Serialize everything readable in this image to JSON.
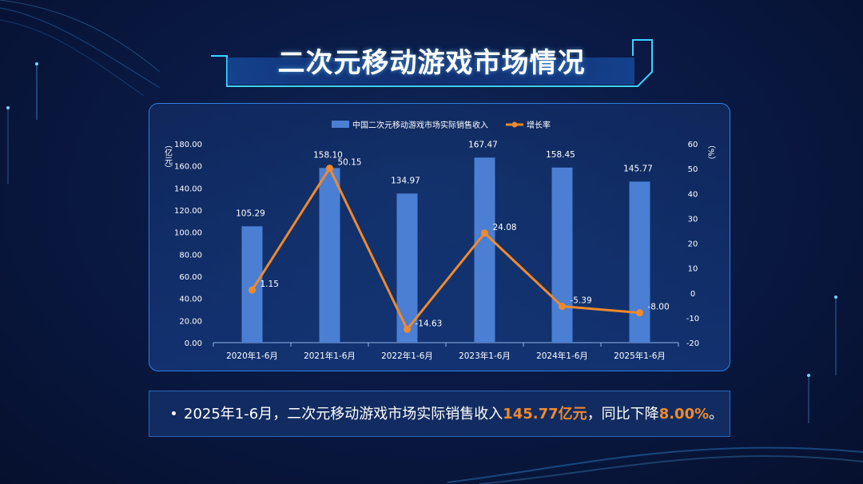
{
  "title": "二次元移动游戏市场情况",
  "chart_data": {
    "type": "bar",
    "categories": [
      "2020年1-6月",
      "2021年1-6月",
      "2022年1-6月",
      "2023年1-6月",
      "2024年1-6月",
      "2025年1-6月"
    ],
    "series": [
      {
        "name": "中国二次元移动游戏市场实际销售收入",
        "type": "bar",
        "axis": "left",
        "values": [
          105.29,
          158.1,
          134.97,
          167.47,
          158.45,
          145.77
        ],
        "color": "#4a7fd4"
      },
      {
        "name": "增长率",
        "type": "line",
        "axis": "right",
        "values": [
          1.15,
          50.15,
          -14.63,
          24.08,
          -5.39,
          -8.0
        ],
        "color": "#f08a2c"
      }
    ],
    "bar_labels": [
      "105.29",
      "158.10",
      "134.97",
      "167.47",
      "158.45",
      "145.77"
    ],
    "line_labels": [
      "1.15",
      "50.15",
      "-14.63",
      "24.08",
      "-5.39",
      "-8.00"
    ],
    "ylabel": "（亿元）",
    "ylabel_right": "（%）",
    "ylim": [
      0,
      180
    ],
    "ylim_right": [
      -20,
      60
    ],
    "yticks": [
      "0.00",
      "20.00",
      "40.00",
      "60.00",
      "80.00",
      "100.00",
      "120.00",
      "140.00",
      "160.00",
      "180.00"
    ],
    "yticks_right": [
      "-20",
      "-10",
      "0",
      "10",
      "20",
      "30",
      "40",
      "50",
      "60"
    ],
    "legend_position": "top-center",
    "grid": false
  },
  "note": {
    "prefix": "2025年1-6月，二次元移动游戏市场实际销售收入",
    "value1": "145.77亿元",
    "middle": "，同比下降",
    "value2": "8.00%",
    "suffix": "。"
  },
  "colors": {
    "accent": "#f08a2c",
    "bar": "#4a7fd4",
    "border": "#2f7fe0"
  }
}
